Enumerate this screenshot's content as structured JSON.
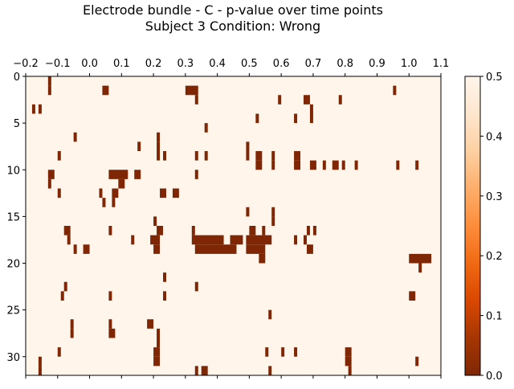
{
  "chart_data": {
    "type": "heatmap",
    "title_line1": "Electrode bundle - C - p-value over time points",
    "title_line2": "Subject 3    Condition: Wrong",
    "x_ticks": [
      -0.2,
      -0.1,
      0.0,
      0.1,
      0.2,
      0.3,
      0.4,
      0.5,
      0.6,
      0.7,
      0.8,
      0.9,
      1.0,
      1.1
    ],
    "x_range": [
      -0.2,
      1.1
    ],
    "x_axis_position": "top",
    "y_ticks": [
      0,
      5,
      10,
      15,
      20,
      25,
      30
    ],
    "y_range": [
      0,
      32
    ],
    "y_inverted": true,
    "colorbar": {
      "colormap": "Oranges_r",
      "range": [
        0.0,
        0.5
      ],
      "ticks": [
        0.0,
        0.1,
        0.2,
        0.3,
        0.4,
        0.5
      ],
      "tick_labels": [
        "0.0",
        "0.1",
        "0.2",
        "0.3",
        "0.4",
        "0.5"
      ]
    },
    "background_value": 0.5,
    "significant_cells": [
      {
        "row": 0,
        "x_start": -0.13,
        "x_end": -0.12,
        "value": 0.0
      },
      {
        "row": 1,
        "x_start": -0.13,
        "x_end": -0.12,
        "value": 0.0
      },
      {
        "row": 1,
        "x_start": 0.04,
        "x_end": 0.06,
        "value": 0.0
      },
      {
        "row": 1,
        "x_start": 0.3,
        "x_end": 0.34,
        "value": 0.0
      },
      {
        "row": 1,
        "x_start": 0.95,
        "x_end": 0.96,
        "value": 0.0
      },
      {
        "row": 2,
        "x_start": 0.33,
        "x_end": 0.34,
        "value": 0.0
      },
      {
        "row": 2,
        "x_start": 0.59,
        "x_end": 0.6,
        "value": 0.0
      },
      {
        "row": 2,
        "x_start": 0.67,
        "x_end": 0.69,
        "value": 0.0
      },
      {
        "row": 2,
        "x_start": 0.78,
        "x_end": 0.79,
        "value": 0.0
      },
      {
        "row": 3,
        "x_start": -0.18,
        "x_end": -0.17,
        "value": 0.0
      },
      {
        "row": 3,
        "x_start": -0.16,
        "x_end": -0.15,
        "value": 0.0
      },
      {
        "row": 3,
        "x_start": 0.69,
        "x_end": 0.7,
        "value": 0.0
      },
      {
        "row": 4,
        "x_start": 0.52,
        "x_end": 0.53,
        "value": 0.0
      },
      {
        "row": 4,
        "x_start": 0.64,
        "x_end": 0.65,
        "value": 0.0
      },
      {
        "row": 4,
        "x_start": 0.69,
        "x_end": 0.7,
        "value": 0.0
      },
      {
        "row": 5,
        "x_start": 0.36,
        "x_end": 0.37,
        "value": 0.0
      },
      {
        "row": 6,
        "x_start": -0.05,
        "x_end": -0.04,
        "value": 0.0
      },
      {
        "row": 6,
        "x_start": 0.21,
        "x_end": 0.22,
        "value": 0.0
      },
      {
        "row": 7,
        "x_start": 0.15,
        "x_end": 0.16,
        "value": 0.0
      },
      {
        "row": 7,
        "x_start": 0.21,
        "x_end": 0.22,
        "value": 0.0
      },
      {
        "row": 7,
        "x_start": 0.49,
        "x_end": 0.5,
        "value": 0.0
      },
      {
        "row": 8,
        "x_start": -0.1,
        "x_end": -0.09,
        "value": 0.0
      },
      {
        "row": 8,
        "x_start": 0.21,
        "x_end": 0.22,
        "value": 0.0
      },
      {
        "row": 8,
        "x_start": 0.23,
        "x_end": 0.24,
        "value": 0.0
      },
      {
        "row": 8,
        "x_start": 0.33,
        "x_end": 0.34,
        "value": 0.0
      },
      {
        "row": 8,
        "x_start": 0.36,
        "x_end": 0.37,
        "value": 0.0
      },
      {
        "row": 8,
        "x_start": 0.49,
        "x_end": 0.5,
        "value": 0.0
      },
      {
        "row": 8,
        "x_start": 0.52,
        "x_end": 0.54,
        "value": 0.0
      },
      {
        "row": 8,
        "x_start": 0.57,
        "x_end": 0.58,
        "value": 0.0
      },
      {
        "row": 8,
        "x_start": 0.64,
        "x_end": 0.66,
        "value": 0.0
      },
      {
        "row": 9,
        "x_start": 0.52,
        "x_end": 0.54,
        "value": 0.0
      },
      {
        "row": 9,
        "x_start": 0.57,
        "x_end": 0.58,
        "value": 0.0
      },
      {
        "row": 9,
        "x_start": 0.64,
        "x_end": 0.66,
        "value": 0.0
      },
      {
        "row": 9,
        "x_start": 0.69,
        "x_end": 0.71,
        "value": 0.0
      },
      {
        "row": 9,
        "x_start": 0.73,
        "x_end": 0.74,
        "value": 0.0
      },
      {
        "row": 9,
        "x_start": 0.76,
        "x_end": 0.78,
        "value": 0.0
      },
      {
        "row": 9,
        "x_start": 0.79,
        "x_end": 0.8,
        "value": 0.0
      },
      {
        "row": 9,
        "x_start": 0.83,
        "x_end": 0.84,
        "value": 0.0
      },
      {
        "row": 9,
        "x_start": 0.96,
        "x_end": 0.97,
        "value": 0.0
      },
      {
        "row": 9,
        "x_start": 1.02,
        "x_end": 1.03,
        "value": 0.0
      },
      {
        "row": 10,
        "x_start": -0.13,
        "x_end": -0.11,
        "value": 0.0
      },
      {
        "row": 10,
        "x_start": 0.06,
        "x_end": 0.12,
        "value": 0.0
      },
      {
        "row": 10,
        "x_start": 0.14,
        "x_end": 0.16,
        "value": 0.0
      },
      {
        "row": 10,
        "x_start": 0.33,
        "x_end": 0.34,
        "value": 0.0
      },
      {
        "row": 11,
        "x_start": -0.13,
        "x_end": -0.12,
        "value": 0.0
      },
      {
        "row": 11,
        "x_start": 0.09,
        "x_end": 0.11,
        "value": 0.0
      },
      {
        "row": 12,
        "x_start": -0.1,
        "x_end": -0.09,
        "value": 0.0
      },
      {
        "row": 12,
        "x_start": 0.03,
        "x_end": 0.04,
        "value": 0.0
      },
      {
        "row": 12,
        "x_start": 0.07,
        "x_end": 0.09,
        "value": 0.0
      },
      {
        "row": 12,
        "x_start": 0.22,
        "x_end": 0.24,
        "value": 0.0
      },
      {
        "row": 12,
        "x_start": 0.26,
        "x_end": 0.28,
        "value": 0.0
      },
      {
        "row": 13,
        "x_start": 0.04,
        "x_end": 0.05,
        "value": 0.0
      },
      {
        "row": 13,
        "x_start": 0.07,
        "x_end": 0.08,
        "value": 0.0
      },
      {
        "row": 14,
        "x_start": 0.49,
        "x_end": 0.5,
        "value": 0.0
      },
      {
        "row": 14,
        "x_start": 0.57,
        "x_end": 0.58,
        "value": 0.0
      },
      {
        "row": 15,
        "x_start": 0.2,
        "x_end": 0.21,
        "value": 0.0
      },
      {
        "row": 15,
        "x_start": 0.57,
        "x_end": 0.58,
        "value": 0.0
      },
      {
        "row": 16,
        "x_start": -0.08,
        "x_end": -0.06,
        "value": 0.0
      },
      {
        "row": 16,
        "x_start": 0.06,
        "x_end": 0.07,
        "value": 0.0
      },
      {
        "row": 16,
        "x_start": 0.21,
        "x_end": 0.23,
        "value": 0.0
      },
      {
        "row": 16,
        "x_start": 0.32,
        "x_end": 0.33,
        "value": 0.0
      },
      {
        "row": 16,
        "x_start": 0.5,
        "x_end": 0.52,
        "value": 0.0
      },
      {
        "row": 16,
        "x_start": 0.54,
        "x_end": 0.55,
        "value": 0.0
      },
      {
        "row": 16,
        "x_start": 0.68,
        "x_end": 0.69,
        "value": 0.0
      },
      {
        "row": 16,
        "x_start": 0.7,
        "x_end": 0.71,
        "value": 0.0
      },
      {
        "row": 17,
        "x_start": -0.07,
        "x_end": -0.06,
        "value": 0.0
      },
      {
        "row": 17,
        "x_start": 0.13,
        "x_end": 0.14,
        "value": 0.0
      },
      {
        "row": 17,
        "x_start": 0.19,
        "x_end": 0.22,
        "value": 0.0
      },
      {
        "row": 17,
        "x_start": 0.32,
        "x_end": 0.42,
        "value": 0.0
      },
      {
        "row": 17,
        "x_start": 0.44,
        "x_end": 0.48,
        "value": 0.0
      },
      {
        "row": 17,
        "x_start": 0.49,
        "x_end": 0.57,
        "value": 0.0
      },
      {
        "row": 17,
        "x_start": 0.64,
        "x_end": 0.65,
        "value": 0.0
      },
      {
        "row": 17,
        "x_start": 0.67,
        "x_end": 0.68,
        "value": 0.0
      },
      {
        "row": 18,
        "x_start": -0.05,
        "x_end": -0.04,
        "value": 0.0
      },
      {
        "row": 18,
        "x_start": -0.02,
        "x_end": 0.0,
        "value": 0.0
      },
      {
        "row": 18,
        "x_start": 0.2,
        "x_end": 0.22,
        "value": 0.0
      },
      {
        "row": 18,
        "x_start": 0.33,
        "x_end": 0.46,
        "value": 0.0
      },
      {
        "row": 18,
        "x_start": 0.49,
        "x_end": 0.55,
        "value": 0.0
      },
      {
        "row": 18,
        "x_start": 0.68,
        "x_end": 0.7,
        "value": 0.0
      },
      {
        "row": 19,
        "x_start": 0.53,
        "x_end": 0.55,
        "value": 0.0
      },
      {
        "row": 19,
        "x_start": 1.0,
        "x_end": 1.07,
        "value": 0.0
      },
      {
        "row": 20,
        "x_start": 1.03,
        "x_end": 1.04,
        "value": 0.0
      },
      {
        "row": 21,
        "x_start": 0.23,
        "x_end": 0.24,
        "value": 0.0
      },
      {
        "row": 22,
        "x_start": -0.08,
        "x_end": -0.07,
        "value": 0.0
      },
      {
        "row": 22,
        "x_start": 0.33,
        "x_end": 0.34,
        "value": 0.0
      },
      {
        "row": 23,
        "x_start": -0.09,
        "x_end": -0.08,
        "value": 0.0
      },
      {
        "row": 23,
        "x_start": 0.06,
        "x_end": 0.07,
        "value": 0.0
      },
      {
        "row": 23,
        "x_start": 0.23,
        "x_end": 0.24,
        "value": 0.0
      },
      {
        "row": 23,
        "x_start": 1.0,
        "x_end": 1.02,
        "value": 0.0
      },
      {
        "row": 25,
        "x_start": 0.56,
        "x_end": 0.57,
        "value": 0.0
      },
      {
        "row": 26,
        "x_start": -0.06,
        "x_end": -0.05,
        "value": 0.0
      },
      {
        "row": 26,
        "x_start": 0.06,
        "x_end": 0.07,
        "value": 0.0
      },
      {
        "row": 26,
        "x_start": 0.18,
        "x_end": 0.2,
        "value": 0.0
      },
      {
        "row": 27,
        "x_start": -0.06,
        "x_end": -0.05,
        "value": 0.0
      },
      {
        "row": 27,
        "x_start": 0.06,
        "x_end": 0.08,
        "value": 0.0
      },
      {
        "row": 27,
        "x_start": 0.21,
        "x_end": 0.22,
        "value": 0.0
      },
      {
        "row": 28,
        "x_start": 0.21,
        "x_end": 0.22,
        "value": 0.0
      },
      {
        "row": 29,
        "x_start": -0.1,
        "x_end": -0.09,
        "value": 0.0
      },
      {
        "row": 29,
        "x_start": 0.2,
        "x_end": 0.22,
        "value": 0.0
      },
      {
        "row": 29,
        "x_start": 0.55,
        "x_end": 0.56,
        "value": 0.0
      },
      {
        "row": 29,
        "x_start": 0.6,
        "x_end": 0.61,
        "value": 0.0
      },
      {
        "row": 29,
        "x_start": 0.64,
        "x_end": 0.65,
        "value": 0.0
      },
      {
        "row": 29,
        "x_start": 0.8,
        "x_end": 0.82,
        "value": 0.0
      },
      {
        "row": 30,
        "x_start": -0.16,
        "x_end": -0.15,
        "value": 0.0
      },
      {
        "row": 30,
        "x_start": 0.2,
        "x_end": 0.22,
        "value": 0.0
      },
      {
        "row": 30,
        "x_start": 0.8,
        "x_end": 0.82,
        "value": 0.0
      },
      {
        "row": 30,
        "x_start": 1.02,
        "x_end": 1.03,
        "value": 0.0
      },
      {
        "row": 31,
        "x_start": -0.16,
        "x_end": -0.15,
        "value": 0.0
      },
      {
        "row": 31,
        "x_start": 0.33,
        "x_end": 0.34,
        "value": 0.0
      },
      {
        "row": 31,
        "x_start": 0.35,
        "x_end": 0.37,
        "value": 0.0
      },
      {
        "row": 31,
        "x_start": 0.56,
        "x_end": 0.57,
        "value": 0.0
      },
      {
        "row": 31,
        "x_start": 0.81,
        "x_end": 0.82,
        "value": 0.0
      }
    ]
  }
}
